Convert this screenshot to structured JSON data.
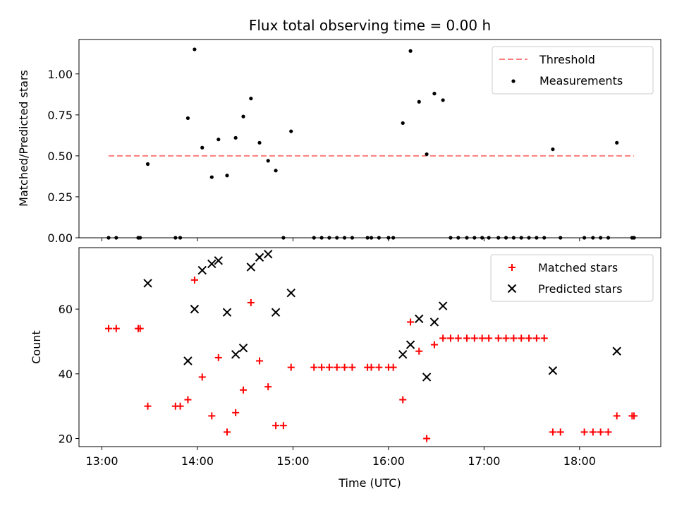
{
  "chart_data": {
    "type": "scatter",
    "title": "Flux total observing time = 0.00 h",
    "xlabel": "Time (UTC)",
    "x_unit": "hours",
    "xlim": [
      12.76,
      18.85
    ],
    "x_ticks": [
      13,
      14,
      15,
      16,
      17,
      18
    ],
    "x_tick_labels": [
      "13:00",
      "14:00",
      "15:00",
      "16:00",
      "17:00",
      "18:00"
    ],
    "top": {
      "ylabel": "Matched/Predicted stars",
      "ylim": [
        0,
        1.21
      ],
      "y_ticks": [
        0,
        0.25,
        0.5,
        0.75,
        1.0
      ],
      "y_tick_labels": [
        "0.00",
        "0.25",
        "0.50",
        "0.75",
        "1.00"
      ],
      "legend": [
        "Threshold",
        "Measurements"
      ],
      "threshold": {
        "value": 0.5,
        "x_start": 13.07,
        "x_end": 18.57,
        "color": "#ff7f7f"
      },
      "measurements": {
        "color": "#000000",
        "x": [
          13.07,
          13.15,
          13.38,
          13.4,
          13.48,
          13.77,
          13.82,
          13.9,
          13.97,
          14.05,
          14.15,
          14.22,
          14.31,
          14.4,
          14.48,
          14.56,
          14.65,
          14.74,
          14.82,
          14.9,
          14.98,
          15.22,
          15.3,
          15.38,
          15.46,
          15.54,
          15.62,
          15.78,
          15.82,
          15.9,
          16.0,
          16.05,
          16.15,
          16.23,
          16.32,
          16.4,
          16.48,
          16.57,
          16.65,
          16.73,
          16.82,
          16.9,
          16.98,
          17.05,
          17.15,
          17.23,
          17.31,
          17.39,
          17.47,
          17.55,
          17.63,
          17.72,
          17.8,
          18.05,
          18.14,
          18.22,
          18.3,
          18.39,
          18.55,
          18.57
        ],
        "y": [
          0,
          0,
          0,
          0,
          0.45,
          0,
          0,
          0.73,
          1.15,
          0.55,
          0.37,
          0.6,
          0.38,
          0.61,
          0.74,
          0.85,
          0.58,
          0.47,
          0.41,
          0,
          0.65,
          0,
          0,
          0,
          0,
          0,
          0,
          0,
          0,
          0,
          0,
          0,
          0.7,
          1.14,
          0.83,
          0.51,
          0.88,
          0.84,
          0,
          0,
          0,
          0,
          0,
          0,
          0,
          0,
          0,
          0,
          0,
          0,
          0,
          0.54,
          0,
          0,
          0,
          0,
          0,
          0.58,
          0,
          0
        ]
      }
    },
    "bottom": {
      "ylabel": "Count",
      "ylim": [
        17.5,
        79
      ],
      "y_ticks": [
        20,
        40,
        60
      ],
      "y_tick_labels": [
        "20",
        "40",
        "60"
      ],
      "legend": [
        "Matched stars",
        "Predicted stars"
      ],
      "matched": {
        "color": "#ff0000",
        "x": [
          13.07,
          13.15,
          13.38,
          13.4,
          13.48,
          13.77,
          13.82,
          13.9,
          13.97,
          14.05,
          14.15,
          14.22,
          14.31,
          14.4,
          14.48,
          14.56,
          14.65,
          14.74,
          14.82,
          14.9,
          14.98,
          15.22,
          15.3,
          15.38,
          15.46,
          15.54,
          15.62,
          15.78,
          15.82,
          15.9,
          16.0,
          16.05,
          16.15,
          16.23,
          16.32,
          16.4,
          16.48,
          16.57,
          16.65,
          16.73,
          16.82,
          16.9,
          16.98,
          17.05,
          17.15,
          17.23,
          17.31,
          17.39,
          17.47,
          17.55,
          17.63,
          17.72,
          17.8,
          18.05,
          18.14,
          18.22,
          18.3,
          18.39,
          18.55,
          18.57
        ],
        "y": [
          54,
          54,
          54,
          54,
          30,
          30,
          30,
          32,
          69,
          39,
          27,
          45,
          22,
          28,
          35,
          62,
          44,
          36,
          24,
          24,
          42,
          42,
          42,
          42,
          42,
          42,
          42,
          42,
          42,
          42,
          42,
          42,
          32,
          56,
          47,
          20,
          49,
          51,
          51,
          51,
          51,
          51,
          51,
          51,
          51,
          51,
          51,
          51,
          51,
          51,
          51,
          22,
          22,
          22,
          22,
          22,
          22,
          27,
          27,
          27
        ]
      },
      "predicted": {
        "color": "#000000",
        "x": [
          13.48,
          13.9,
          13.97,
          14.05,
          14.15,
          14.22,
          14.31,
          14.4,
          14.48,
          14.56,
          14.65,
          14.74,
          14.82,
          14.98,
          16.15,
          16.23,
          16.32,
          16.4,
          16.48,
          16.57,
          17.72,
          18.39
        ],
        "y": [
          68,
          44,
          60,
          72,
          74,
          75,
          59,
          46,
          48,
          73,
          76,
          77,
          59,
          65,
          46,
          49,
          57,
          39,
          56,
          61,
          41,
          47
        ]
      }
    }
  }
}
